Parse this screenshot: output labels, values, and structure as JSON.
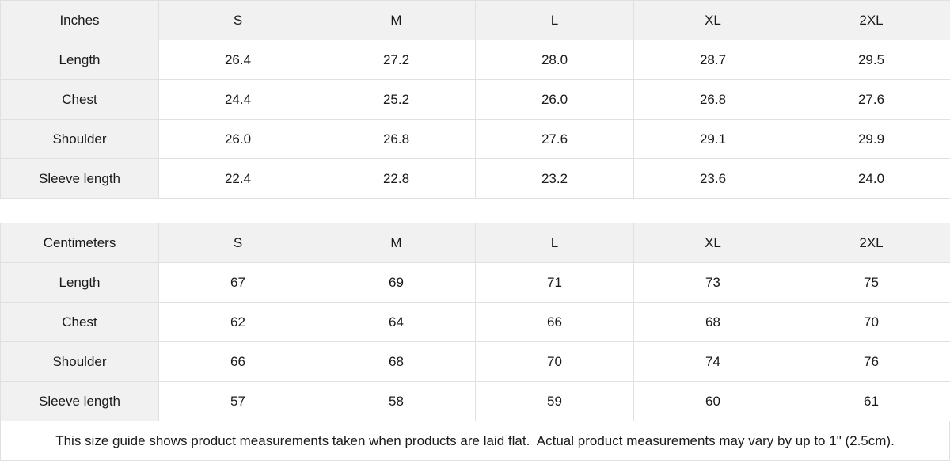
{
  "colors": {
    "header_bg": "#f1f1f1",
    "border": "#e0e0e0",
    "text": "#1a1a1a",
    "cell_bg": "#ffffff"
  },
  "tables": [
    {
      "unit_label": "Inches",
      "sizes": [
        "S",
        "M",
        "L",
        "XL",
        "2XL"
      ],
      "rows": [
        {
          "label": "Length",
          "values": [
            "26.4",
            "27.2",
            "28.0",
            "28.7",
            "29.5"
          ]
        },
        {
          "label": "Chest",
          "values": [
            "24.4",
            "25.2",
            "26.0",
            "26.8",
            "27.6"
          ]
        },
        {
          "label": "Shoulder",
          "values": [
            "26.0",
            "26.8",
            "27.6",
            "29.1",
            "29.9"
          ]
        },
        {
          "label": "Sleeve length",
          "values": [
            "22.4",
            "22.8",
            "23.2",
            "23.6",
            "24.0"
          ]
        }
      ]
    },
    {
      "unit_label": "Centimeters",
      "sizes": [
        "S",
        "M",
        "L",
        "XL",
        "2XL"
      ],
      "rows": [
        {
          "label": "Length",
          "values": [
            "67",
            "69",
            "71",
            "73",
            "75"
          ]
        },
        {
          "label": "Chest",
          "values": [
            "62",
            "64",
            "66",
            "68",
            "70"
          ]
        },
        {
          "label": "Shoulder",
          "values": [
            "66",
            "68",
            "70",
            "74",
            "76"
          ]
        },
        {
          "label": "Sleeve length",
          "values": [
            "57",
            "58",
            "59",
            "60",
            "61"
          ]
        }
      ]
    }
  ],
  "footer": {
    "note": "This size guide shows product measurements taken when products are laid flat.  Actual product measurements may vary by up to 1\" (2.5cm)."
  }
}
